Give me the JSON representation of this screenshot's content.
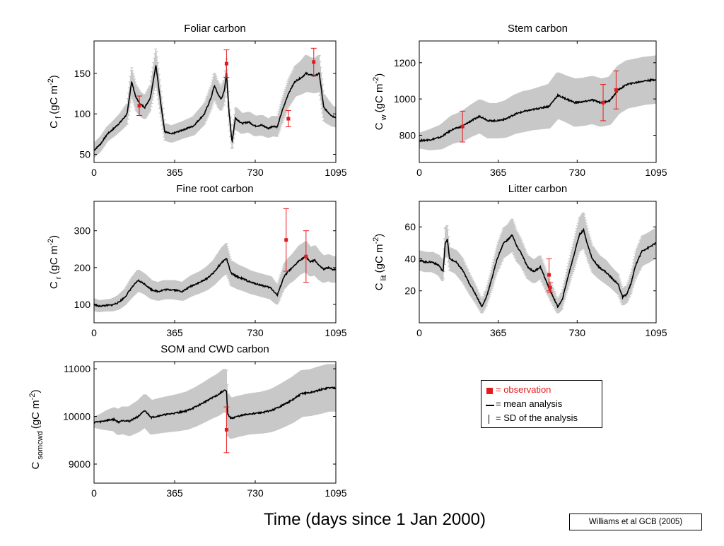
{
  "xlabel": "Time (days since 1 Jan 2000)",
  "citation": "Williams et al  GCB (2005)",
  "legend": {
    "observation": "= observation",
    "mean": "= mean analysis",
    "sd": "= SD of the analysis",
    "observation_color": "#e41a1c",
    "mean_color": "#000000",
    "sd_color": "#c8c8c8"
  },
  "chart_data": [
    {
      "type": "line",
      "title": "Foliar carbon",
      "ylabel": {
        "main": "C",
        "sub": "f",
        "unit": "(gC m",
        "exp": "-2",
        "close": ")"
      },
      "xlim": [
        0,
        1095
      ],
      "ylim": [
        40,
        190
      ],
      "xticks": [
        0,
        365,
        730,
        1095
      ],
      "yticks": [
        50,
        100,
        150
      ],
      "series": [
        {
          "kind": "mean",
          "x": [
            0,
            30,
            60,
            90,
            120,
            150,
            170,
            190,
            210,
            230,
            255,
            280,
            300,
            320,
            350,
            400,
            450,
            500,
            530,
            545,
            560,
            575,
            590,
            600,
            612,
            625,
            640,
            670,
            700,
            730,
            760,
            790,
            810,
            830,
            850,
            880,
            910,
            940,
            960,
            980,
            1000,
            1020,
            1040,
            1060,
            1080,
            1095
          ],
          "y": [
            55,
            63,
            75,
            82,
            90,
            100,
            140,
            120,
            112,
            108,
            120,
            160,
            118,
            78,
            75,
            80,
            85,
            100,
            120,
            135,
            125,
            118,
            128,
            150,
            100,
            65,
            95,
            88,
            90,
            85,
            86,
            82,
            85,
            84,
            102,
            125,
            140,
            145,
            150,
            148,
            147,
            150,
            108,
            102,
            97,
            96
          ],
          "sd": [
            8,
            8,
            8,
            9,
            10,
            12,
            18,
            15,
            14,
            14,
            15,
            22,
            17,
            10,
            10,
            10,
            11,
            12,
            14,
            16,
            15,
            14,
            15,
            18,
            14,
            10,
            13,
            12,
            12,
            12,
            12,
            11,
            12,
            12,
            14,
            16,
            18,
            20,
            22,
            21,
            21,
            22,
            16,
            14,
            12,
            12
          ]
        }
      ],
      "observations": [
        {
          "x": 205,
          "y": 110,
          "err": 12
        },
        {
          "x": 600,
          "y": 162,
          "err": 17
        },
        {
          "x": 880,
          "y": 94,
          "err": 10
        },
        {
          "x": 995,
          "y": 164,
          "err": 17
        }
      ]
    },
    {
      "type": "line",
      "title": "Stem carbon",
      "ylabel": {
        "main": "C",
        "sub": "w",
        "unit": "(gC m",
        "exp": "-2",
        "close": ")"
      },
      "xlim": [
        0,
        1095
      ],
      "ylim": [
        650,
        1320
      ],
      "xticks": [
        0,
        365,
        730,
        1095
      ],
      "yticks": [
        800,
        1000,
        1200
      ],
      "series": [
        {
          "kind": "mean",
          "x": [
            0,
            50,
            100,
            150,
            200,
            240,
            280,
            320,
            360,
            400,
            440,
            480,
            520,
            560,
            600,
            640,
            680,
            720,
            760,
            800,
            840,
            880,
            920,
            960,
            1000,
            1040,
            1080,
            1095
          ],
          "y": [
            770,
            775,
            790,
            830,
            850,
            880,
            905,
            880,
            880,
            890,
            915,
            930,
            940,
            950,
            960,
            1020,
            1000,
            980,
            985,
            995,
            980,
            990,
            1050,
            1080,
            1090,
            1100,
            1105,
            1108
          ],
          "sd": [
            40,
            55,
            65,
            75,
            80,
            85,
            90,
            95,
            95,
            100,
            105,
            110,
            110,
            115,
            120,
            125,
            125,
            130,
            130,
            130,
            130,
            130,
            130,
            130,
            130,
            130,
            130,
            130
          ]
        }
      ],
      "observations": [
        {
          "x": 200,
          "y": 848,
          "err": 85
        },
        {
          "x": 850,
          "y": 980,
          "err": 100
        },
        {
          "x": 910,
          "y": 1050,
          "err": 105
        }
      ]
    },
    {
      "type": "line",
      "title": "Fine root carbon",
      "ylabel": {
        "main": "C",
        "sub": "r",
        "unit": "(gC m",
        "exp": "-2",
        "close": ")"
      },
      "xlim": [
        0,
        1095
      ],
      "ylim": [
        50,
        380
      ],
      "xticks": [
        0,
        365,
        730,
        1095
      ],
      "yticks": [
        100,
        200,
        300
      ],
      "series": [
        {
          "kind": "mean",
          "x": [
            0,
            20,
            50,
            80,
            110,
            140,
            170,
            200,
            230,
            260,
            290,
            320,
            360,
            400,
            440,
            480,
            510,
            540,
            560,
            580,
            600,
            620,
            650,
            680,
            710,
            740,
            770,
            800,
            830,
            860,
            880,
            900,
            930,
            960,
            980,
            1000,
            1020,
            1040,
            1060,
            1080,
            1095
          ],
          "y": [
            100,
            95,
            97,
            98,
            105,
            120,
            145,
            165,
            155,
            140,
            135,
            140,
            140,
            135,
            150,
            160,
            170,
            185,
            200,
            215,
            225,
            185,
            175,
            168,
            160,
            155,
            150,
            145,
            125,
            175,
            190,
            200,
            220,
            230,
            215,
            220,
            205,
            195,
            200,
            195,
            195
          ],
          "sd": [
            15,
            15,
            15,
            16,
            18,
            20,
            25,
            28,
            26,
            24,
            24,
            25,
            25,
            24,
            27,
            28,
            30,
            32,
            35,
            38,
            40,
            33,
            32,
            31,
            30,
            30,
            30,
            30,
            25,
            32,
            33,
            35,
            38,
            40,
            38,
            39,
            37,
            35,
            35,
            35,
            35
          ]
        }
      ],
      "observations": [
        {
          "x": 870,
          "y": 275,
          "err": 85
        },
        {
          "x": 960,
          "y": 230,
          "err": 70
        }
      ]
    },
    {
      "type": "line",
      "title": "Litter carbon",
      "ylabel": {
        "main": "C",
        "sub": "lit",
        "unit": "(gC m",
        "exp": "-2",
        "close": ")"
      },
      "xlim": [
        0,
        1095
      ],
      "ylim": [
        0,
        76
      ],
      "xticks": [
        0,
        365,
        730,
        1095
      ],
      "yticks": [
        20,
        40,
        60
      ],
      "series": [
        {
          "kind": "mean",
          "x": [
            0,
            30,
            60,
            90,
            110,
            120,
            130,
            140,
            170,
            200,
            230,
            260,
            290,
            310,
            330,
            360,
            390,
            410,
            430,
            450,
            470,
            500,
            530,
            560,
            590,
            605,
            620,
            640,
            660,
            690,
            720,
            740,
            760,
            780,
            800,
            830,
            860,
            890,
            920,
            940,
            960,
            980,
            1000,
            1030,
            1060,
            1095
          ],
          "y": [
            39,
            38,
            38,
            36,
            32,
            50,
            52,
            40,
            38,
            33,
            25,
            18,
            10,
            16,
            25,
            40,
            50,
            52,
            55,
            48,
            44,
            35,
            32,
            35,
            25,
            20,
            16,
            10,
            14,
            30,
            45,
            55,
            58,
            48,
            40,
            35,
            32,
            28,
            24,
            16,
            18,
            25,
            36,
            45,
            47,
            50
          ],
          "sd": [
            6,
            6,
            6,
            6,
            6,
            9,
            9,
            7,
            7,
            7,
            6,
            5,
            4,
            5,
            6,
            8,
            9,
            9,
            10,
            9,
            8,
            7,
            7,
            7,
            6,
            5,
            5,
            4,
            5,
            7,
            9,
            10,
            11,
            9,
            8,
            7,
            7,
            6,
            6,
            5,
            5,
            6,
            8,
            9,
            9,
            9
          ]
        }
      ],
      "observations": [
        {
          "x": 600,
          "y": 30,
          "err": 10
        },
        {
          "x": 605,
          "y": 22,
          "err": 3
        }
      ]
    },
    {
      "type": "line",
      "title": "SOM and CWD carbon",
      "ylabel": {
        "main": "C",
        "sub": "somcwd",
        "unit": "(gC m",
        "exp": "-2",
        "close": ")"
      },
      "xlim": [
        0,
        1095
      ],
      "ylim": [
        8600,
        11150
      ],
      "xticks": [
        0,
        365,
        730,
        1095
      ],
      "yticks": [
        9000,
        10000,
        11000
      ],
      "series": [
        {
          "kind": "mean",
          "x": [
            0,
            30,
            60,
            90,
            110,
            130,
            160,
            200,
            230,
            260,
            300,
            340,
            380,
            420,
            460,
            500,
            530,
            560,
            590,
            600,
            605,
            620,
            650,
            700,
            760,
            800,
            830,
            860,
            900,
            940,
            980,
            1020,
            1060,
            1095
          ],
          "y": [
            9880,
            9890,
            9920,
            9940,
            9880,
            9920,
            9900,
            10000,
            10120,
            9980,
            10020,
            10050,
            10080,
            10120,
            10200,
            10300,
            10380,
            10450,
            10550,
            10520,
            10050,
            9960,
            10000,
            10050,
            10080,
            10120,
            10180,
            10250,
            10350,
            10480,
            10500,
            10550,
            10600,
            10600
          ],
          "sd": [
            100,
            150,
            200,
            240,
            260,
            280,
            300,
            320,
            340,
            350,
            360,
            370,
            380,
            390,
            400,
            410,
            420,
            430,
            440,
            440,
            430,
            420,
            420,
            420,
            430,
            440,
            450,
            460,
            470,
            480,
            480,
            490,
            490,
            490
          ]
        }
      ],
      "observations": [
        {
          "x": 600,
          "y": 9720,
          "err": 480
        }
      ]
    }
  ]
}
